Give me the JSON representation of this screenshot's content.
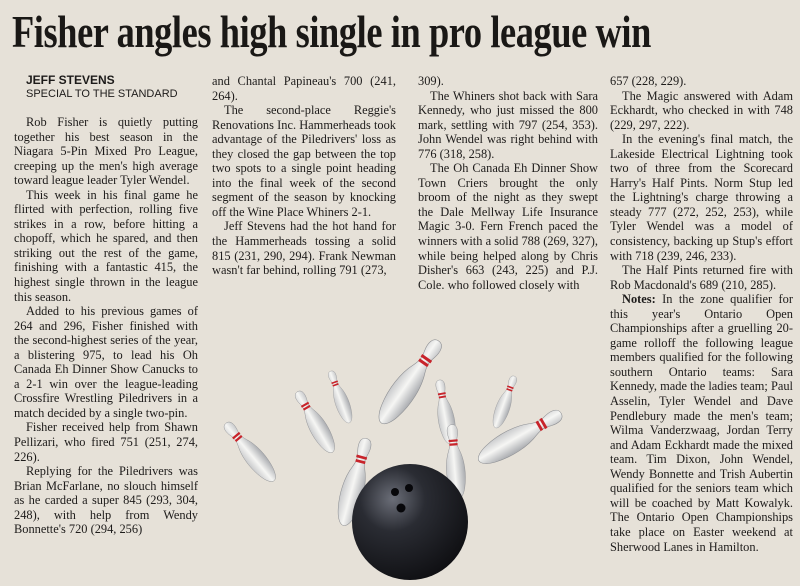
{
  "headline": "Fisher angles high single in pro league win",
  "byline": {
    "author": "JEFF STEVENS",
    "affiliation": "SPECIAL TO THE STANDARD"
  },
  "columns": [
    {
      "paragraphs": [
        "Rob Fisher is quietly putting together his best season in the Niagara 5-Pin Mixed Pro League, creeping up the men's high average toward league leader Tyler Wendel.",
        "This week in his final game he flirted with perfection, rolling five strikes in a row, before hitting a chopoff, which he spared, and then striking out the rest of the game, finishing with a fantastic 415, the highest single thrown in the league this season.",
        "Added to his previous games of 264 and 296, Fisher finished with the second-highest series of the year, a blistering 975, to lead his Oh Canada Eh Dinner Show Canucks to a 2-1 win over the league-leading Crossfire Wrestling Piledrivers in a match decided by a single two-pin.",
        "Fisher received help from Shawn Pellizari, who fired 751 (251, 274, 226).",
        "Replying for the Piledrivers was Brian McFarlane, no slouch himself as he carded a super 845 (293, 304, 248), with help from Wendy Bonnette's 720 (294, 256)"
      ]
    },
    {
      "paragraphs": [
        "and Chantal Papineau's 700 (241, 264).",
        "The second-place Reggie's Renovations Inc. Hammerheads took advantage of the Piledrivers' loss as they closed the gap between the top two spots to a single point heading into the final week of the second segment of the season by knocking off the Wine Place Whiners 2-1.",
        "Jeff Stevens had the hot hand for the Hammerheads tossing a solid 815 (231, 290, 294). Frank Newman wasn't far behind, rolling 791 (273,"
      ]
    },
    {
      "paragraphs": [
        "309).",
        "The Whiners shot back with Sara Kennedy, who just missed the 800 mark, settling with 797 (254, 353). John Wendel was right behind with 776 (318, 258).",
        "The Oh Canada Eh Dinner Show Town Criers brought the only broom of the night as they swept the Dale Mellway Life Insurance Magic 3-0. Fern French paced the winners with a solid 788 (269, 327), while being helped along by Chris Disher's 663 (243, 225) and P.J. Cole. who followed closely with"
      ]
    },
    {
      "paragraphs": [
        "657 (228, 229).",
        "The Magic answered with Adam Eckhardt, who checked in with 748 (229, 297, 222).",
        "In the evening's final match, the Lakeside Electrical Lightning took two of three from the Scorecard Harry's Half Pints. Norm Stup led the Lightning's charge throwing a steady 777 (272, 252, 253), while Tyler Wendel was a model of consistency, backing up Stup's effort with 718 (239, 246, 233).",
        "The Half Pints returned fire with Rob Macdonald's 689 (210, 285)."
      ],
      "notes_label": "Notes:",
      "notes_text": " In the zone qualifier for this year's Ontario Open Championships after a gruelling 20-game rolloff the following league members qualified for the following southern Ontario teams: Sara Kennedy, made the ladies team; Paul Asselin, Tyler Wendel and Dave Pendlebury made the men's team; Wilma Vanderzwaag, Jordan Terry and Adam Eckhardt made the mixed team. Tim Dixon, John Wendel, Wendy Bonnette and Trish Aubertin qualified for the seniors team which will be coached by Matt Kowalyk. The Ontario Open Championships take place on Easter weekend at Sherwood Lanes in Hamilton."
    }
  ],
  "image": {
    "subject": "bowling-ball-striking-pins",
    "pin_color": "#f2f2f0",
    "stripe_color": "#c8242b",
    "ball_color": "#1c1d22"
  }
}
